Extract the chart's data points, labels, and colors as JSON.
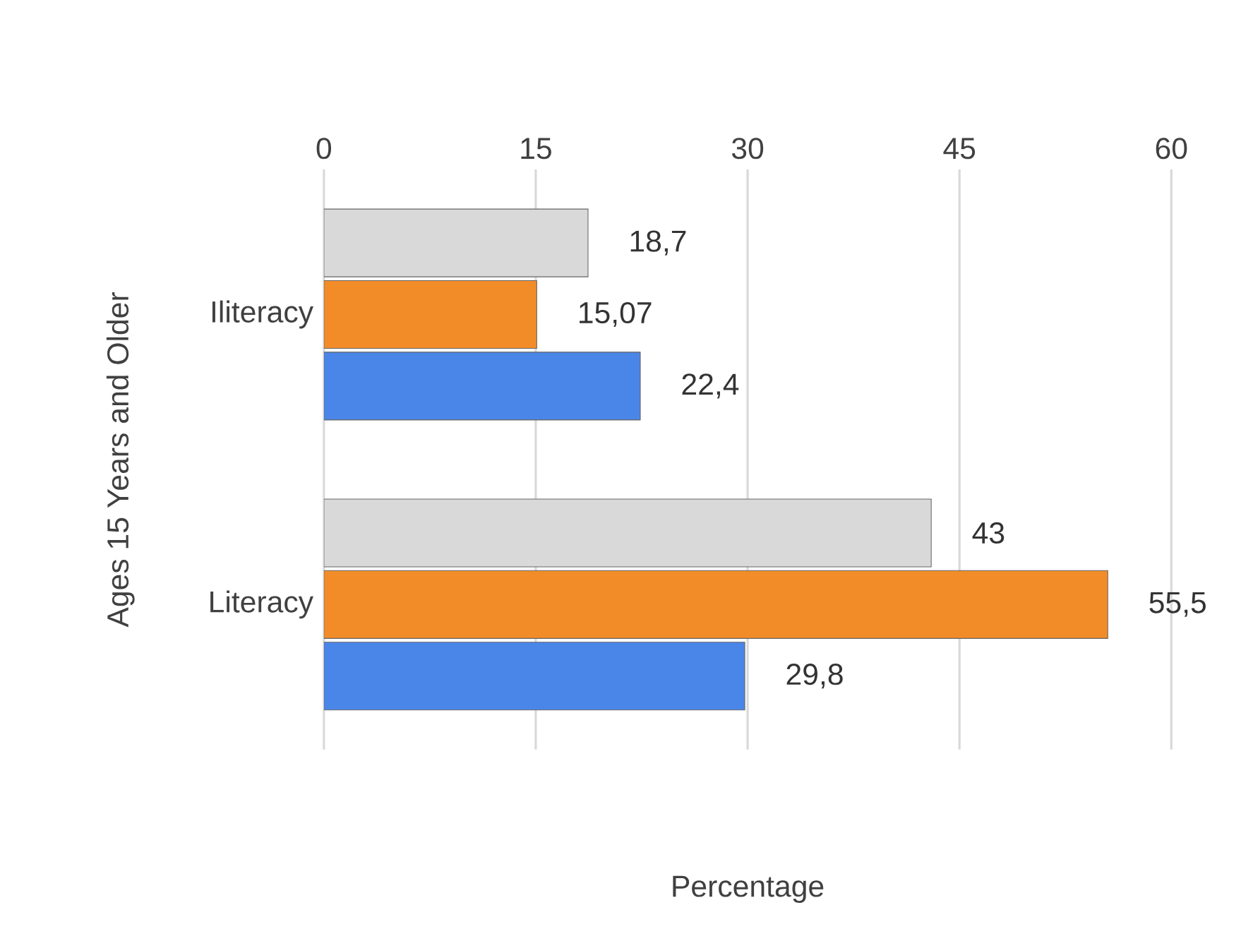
{
  "chart_data": {
    "type": "bar",
    "orientation": "horizontal",
    "xlabel": "Percentage",
    "ylabel": "Ages 15 Years and Older",
    "categories": [
      "Iliteracy",
      "Literacy"
    ],
    "series": [
      {
        "color": "#d9d9d9",
        "values": [
          18.7,
          43
        ],
        "value_labels": [
          "18,7",
          "43"
        ]
      },
      {
        "color": "#f28c28",
        "values": [
          15.07,
          55.5
        ],
        "value_labels": [
          "15,07",
          "55,5"
        ]
      },
      {
        "color": "#4a86e8",
        "values": [
          22.4,
          29.8
        ],
        "value_labels": [
          "22,4",
          "29,8"
        ]
      }
    ],
    "xlim": [
      0,
      60
    ],
    "xticks": [
      0,
      15,
      30,
      45,
      60
    ],
    "grid": "x"
  }
}
